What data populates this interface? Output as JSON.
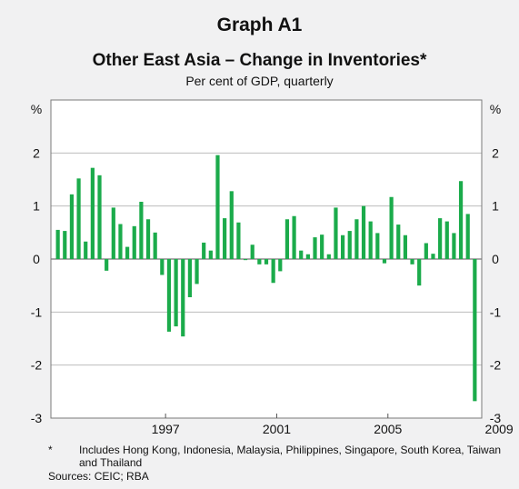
{
  "title": "Graph A1",
  "subtitle": "Other East Asia – Change in Inventories*",
  "units_label": "Per cent of GDP, quarterly",
  "footnote_marker": "*",
  "footnote": "Includes Hong Kong, Indonesia, Malaysia, Philippines, Singapore, South Korea, Taiwan and Thailand",
  "sources": "Sources: CEIC; RBA",
  "colors": {
    "bar": "#1bab4b",
    "background": "#f1f1f2",
    "grid": "#bdbdbd"
  },
  "chart_data": {
    "type": "bar",
    "frequency": "quarterly",
    "x_start": "1993-Q1",
    "x_ticks": [
      "1997",
      "2001",
      "2005",
      "2009"
    ],
    "y_ticks": [
      "-3",
      "-2",
      "-1",
      "0",
      "1",
      "2"
    ],
    "ylim": [
      -3,
      3
    ],
    "ylabel_left": "%",
    "ylabel_right": "%",
    "grid": true,
    "values": [
      0.55,
      0.53,
      1.22,
      1.52,
      0.33,
      1.72,
      1.58,
      -0.22,
      0.97,
      0.66,
      0.23,
      0.62,
      1.08,
      0.75,
      0.5,
      -0.3,
      -1.37,
      -1.27,
      -1.46,
      -0.72,
      -0.47,
      0.31,
      0.16,
      1.96,
      0.77,
      1.28,
      0.69,
      -0.02,
      0.27,
      -0.1,
      -0.1,
      -0.45,
      -0.23,
      0.75,
      0.81,
      0.16,
      0.09,
      0.41,
      0.46,
      0.09,
      0.97,
      0.45,
      0.53,
      0.75,
      1.0,
      0.71,
      0.49,
      -0.08,
      1.17,
      0.65,
      0.45,
      -0.1,
      -0.5,
      0.3,
      0.1,
      0.77,
      0.71,
      0.49,
      1.47,
      0.85,
      -2.68
    ]
  }
}
